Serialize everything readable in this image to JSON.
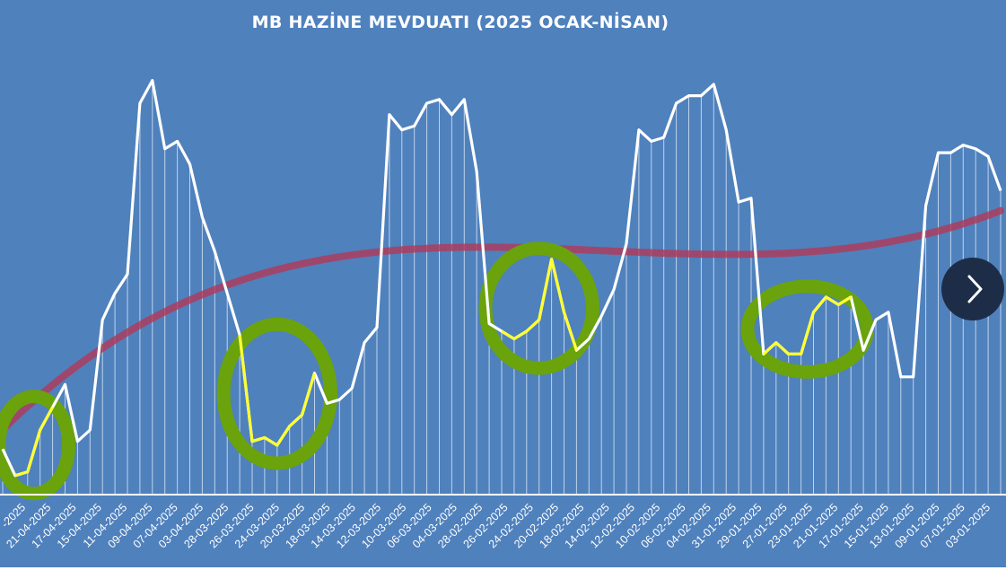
{
  "chart_data": {
    "type": "line",
    "title": "MB HAZİNE MEVDUATI (2025 OCAK-NİSAN)",
    "x_tick_labels": [
      "-2025",
      "21-04-2025",
      "17-04-2025",
      "15-04-2025",
      "11-04-2025",
      "09-04-2025",
      "07-04-2025",
      "03-04-2025",
      "28-03-2025",
      "26-03-2025",
      "24-03-2025",
      "20-03-2025",
      "18-03-2025",
      "14-03-2025",
      "12-03-2025",
      "10-03-2025",
      "06-03-2025",
      "04-03-2025",
      "28-02-2025",
      "26-02-2025",
      "24-02-2025",
      "20-02-2025",
      "18-02-2025",
      "14-02-2025",
      "12-02-2025",
      "10-02-2025",
      "06-02-2025",
      "04-02-2025",
      "31-01-2025",
      "29-01-2025",
      "27-01-2025",
      "23-01-2025",
      "21-01-2025",
      "17-01-2025",
      "15-01-2025",
      "13-01-2025",
      "09-01-2025",
      "07-01-2025",
      "03-01-2025"
    ],
    "series": [
      {
        "values": [
          12,
          5,
          6,
          17,
          23,
          29,
          14,
          17,
          46,
          53,
          58,
          103,
          109,
          91,
          93,
          87,
          73,
          64,
          53,
          42,
          14,
          15,
          13,
          18,
          21,
          32,
          24,
          25,
          28,
          40,
          44,
          100,
          96,
          97,
          103,
          104,
          100,
          104,
          85,
          45,
          43,
          41,
          43,
          46,
          62,
          48,
          38,
          41,
          47,
          54,
          66,
          96,
          93,
          94,
          103,
          105,
          105,
          108,
          96,
          77,
          78,
          37,
          40,
          37,
          37,
          48,
          52,
          50,
          52,
          38,
          46,
          48,
          31,
          31,
          76,
          90,
          90,
          92,
          91,
          89,
          80
        ],
        "highlight_ranges": [
          [
            1,
            4
          ],
          [
            19,
            25
          ],
          [
            40,
            46
          ],
          [
            61,
            68
          ]
        ]
      }
    ],
    "trendline": {
      "type": "polynomial"
    },
    "ylim": [
      0,
      116
    ],
    "grid": false,
    "drop_lines": true,
    "annotations": [
      "green circled dips"
    ],
    "colors": {
      "background": "#4f81bd",
      "line": "#ffffff",
      "highlight": "#ffff33",
      "trend": "#b03a5b",
      "circle": "#6aa30c",
      "nav_button": "#1e2d47"
    }
  },
  "nav": {
    "icon": "chevron-right-icon"
  }
}
